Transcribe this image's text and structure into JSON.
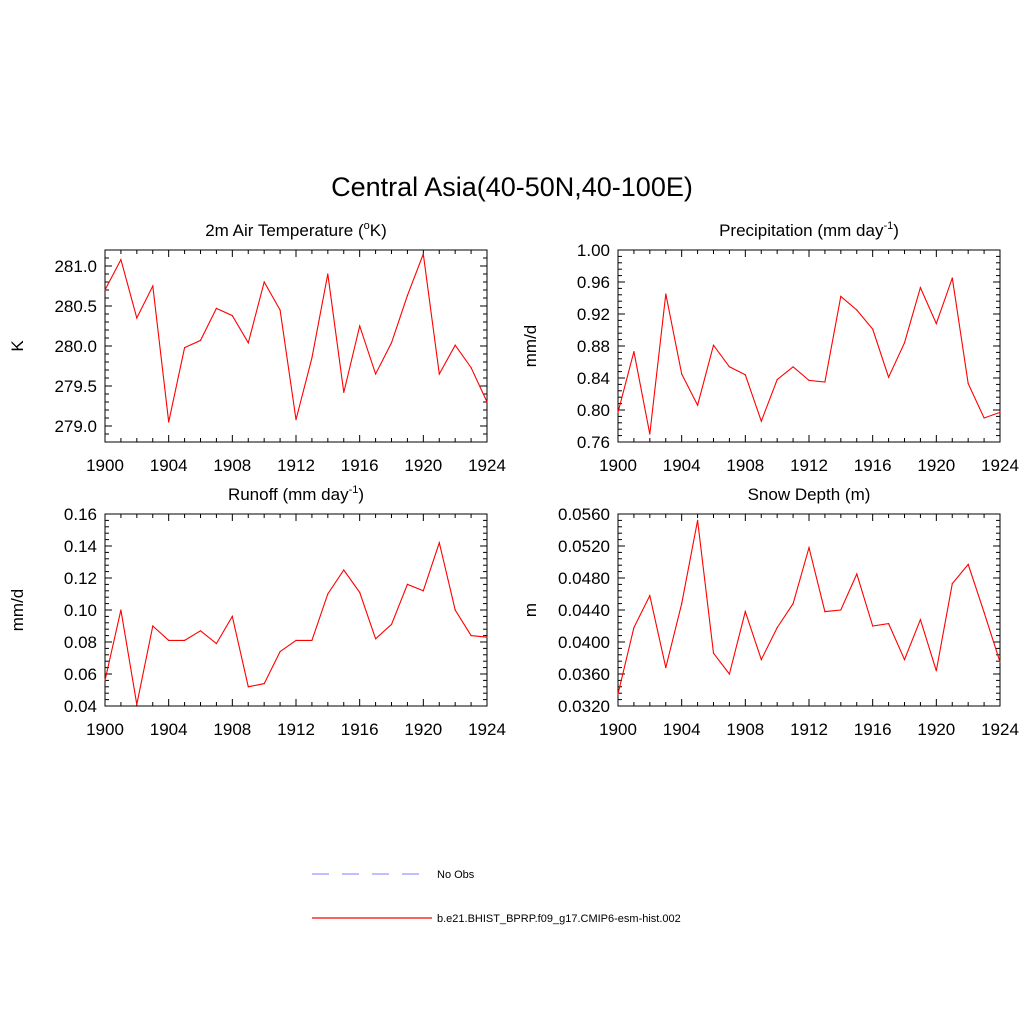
{
  "figure": {
    "title": "Central Asia(40-50N,40-100E)",
    "legend": {
      "obs_label": "No Obs",
      "obs_color": "#9999ff",
      "model_label": "b.e21.BHIST_BPRP.f09_g17.CMIP6-esm-hist.002",
      "model_color": "#ff0000"
    }
  },
  "chart_data": [
    {
      "type": "line",
      "title_main": "2m Air Temperature (",
      "title_sup": "o",
      "title_tail": "K)",
      "ylabel": "K",
      "xlim": [
        1900,
        1924
      ],
      "ylim": [
        278.8,
        281.2
      ],
      "yticks": [
        279.0,
        279.5,
        280.0,
        280.5,
        281.0
      ],
      "ytick_labels": [
        "279.0",
        "279.5",
        "280.0",
        "280.5",
        "281.0"
      ],
      "xticks": [
        1900,
        1904,
        1908,
        1912,
        1916,
        1920,
        1924
      ],
      "xtick_labels": [
        "1900",
        "1904",
        "1908",
        "1912",
        "1916",
        "1920",
        "1924"
      ],
      "x": [
        1900,
        1901,
        1902,
        1903,
        1904,
        1905,
        1906,
        1907,
        1908,
        1909,
        1910,
        1911,
        1912,
        1913,
        1914,
        1915,
        1916,
        1917,
        1918,
        1919,
        1920,
        1921,
        1922,
        1923,
        1924
      ],
      "series": [
        {
          "color": "#ff0000",
          "values": [
            280.7,
            281.08,
            280.35,
            280.75,
            279.05,
            279.98,
            280.07,
            280.47,
            280.38,
            280.04,
            280.8,
            280.45,
            279.08,
            279.85,
            280.9,
            279.42,
            280.25,
            279.65,
            280.04,
            280.63,
            281.15,
            279.65,
            280.01,
            279.73,
            279.3
          ]
        }
      ]
    },
    {
      "type": "line",
      "title_main": "Precipitation (mm day",
      "title_sup": "-1",
      "title_tail": ")",
      "ylabel": "mm/d",
      "xlim": [
        1900,
        1924
      ],
      "ylim": [
        0.76,
        1.0
      ],
      "yticks": [
        0.76,
        0.8,
        0.84,
        0.88,
        0.92,
        0.96,
        1.0
      ],
      "ytick_labels": [
        "0.76",
        "0.80",
        "0.84",
        "0.88",
        "0.92",
        "0.96",
        "1.00"
      ],
      "xticks": [
        1900,
        1904,
        1908,
        1912,
        1916,
        1920,
        1924
      ],
      "xtick_labels": [
        "1900",
        "1904",
        "1908",
        "1912",
        "1916",
        "1920",
        "1924"
      ],
      "x": [
        1900,
        1901,
        1902,
        1903,
        1904,
        1905,
        1906,
        1907,
        1908,
        1909,
        1910,
        1911,
        1912,
        1913,
        1914,
        1915,
        1916,
        1917,
        1918,
        1919,
        1920,
        1921,
        1922,
        1923,
        1924
      ],
      "series": [
        {
          "color": "#ff0000",
          "values": [
            0.797,
            0.873,
            0.77,
            0.945,
            0.845,
            0.806,
            0.881,
            0.854,
            0.844,
            0.786,
            0.838,
            0.854,
            0.837,
            0.835,
            0.942,
            0.925,
            0.901,
            0.841,
            0.884,
            0.953,
            0.908,
            0.965,
            0.833,
            0.79,
            0.797
          ]
        }
      ]
    },
    {
      "type": "line",
      "title_main": "Runoff (mm day",
      "title_sup": "-1",
      "title_tail": ")",
      "ylabel": "mm/d",
      "xlim": [
        1900,
        1924
      ],
      "ylim": [
        0.04,
        0.16
      ],
      "yticks": [
        0.04,
        0.06,
        0.08,
        0.1,
        0.12,
        0.14,
        0.16
      ],
      "ytick_labels": [
        "0.04",
        "0.06",
        "0.08",
        "0.10",
        "0.12",
        "0.14",
        "0.16"
      ],
      "xticks": [
        1900,
        1904,
        1908,
        1912,
        1916,
        1920,
        1924
      ],
      "xtick_labels": [
        "1900",
        "1904",
        "1908",
        "1912",
        "1916",
        "1920",
        "1924"
      ],
      "x": [
        1900,
        1901,
        1902,
        1903,
        1904,
        1905,
        1906,
        1907,
        1908,
        1909,
        1910,
        1911,
        1912,
        1913,
        1914,
        1915,
        1916,
        1917,
        1918,
        1919,
        1920,
        1921,
        1922,
        1923,
        1924
      ],
      "series": [
        {
          "color": "#ff0000",
          "values": [
            0.056,
            0.1,
            0.041,
            0.09,
            0.081,
            0.081,
            0.087,
            0.079,
            0.096,
            0.052,
            0.054,
            0.074,
            0.081,
            0.081,
            0.11,
            0.125,
            0.111,
            0.082,
            0.091,
            0.116,
            0.112,
            0.142,
            0.1,
            0.084,
            0.083
          ]
        }
      ]
    },
    {
      "type": "line",
      "title_main": "Snow Depth (m)",
      "title_sup": "",
      "title_tail": "",
      "ylabel": "m",
      "xlim": [
        1900,
        1924
      ],
      "ylim": [
        0.032,
        0.056
      ],
      "yticks": [
        0.032,
        0.036,
        0.04,
        0.044,
        0.048,
        0.052,
        0.056
      ],
      "ytick_labels": [
        "0.0320",
        "0.0360",
        "0.0400",
        "0.0440",
        "0.0480",
        "0.0520",
        "0.0560"
      ],
      "xticks": [
        1900,
        1904,
        1908,
        1912,
        1916,
        1920,
        1924
      ],
      "xtick_labels": [
        "1900",
        "1904",
        "1908",
        "1912",
        "1916",
        "1920",
        "1924"
      ],
      "x": [
        1900,
        1901,
        1902,
        1903,
        1904,
        1905,
        1906,
        1907,
        1908,
        1909,
        1910,
        1911,
        1912,
        1913,
        1914,
        1915,
        1916,
        1917,
        1918,
        1919,
        1920,
        1921,
        1922,
        1923,
        1924
      ],
      "series": [
        {
          "color": "#ff0000",
          "values": [
            0.0335,
            0.0418,
            0.0458,
            0.0368,
            0.0448,
            0.0552,
            0.0386,
            0.036,
            0.0438,
            0.0378,
            0.0418,
            0.0448,
            0.0518,
            0.0438,
            0.044,
            0.0485,
            0.042,
            0.0423,
            0.0378,
            0.0428,
            0.0364,
            0.0473,
            0.0497,
            0.0437,
            0.0375
          ]
        }
      ]
    }
  ]
}
